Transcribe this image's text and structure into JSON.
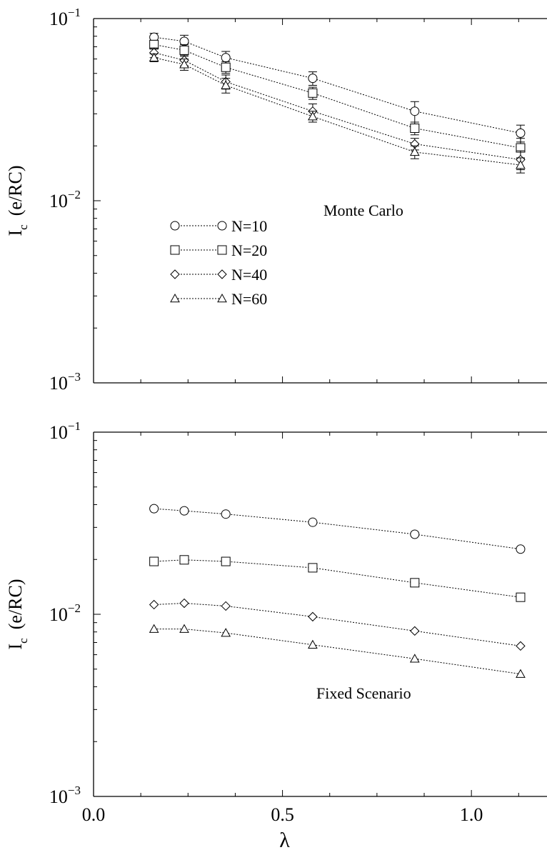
{
  "chart_data": [
    {
      "type": "line",
      "panel": "top",
      "annotation": "Monte Carlo",
      "ylabel_main": "I",
      "ylabel_sub": "c",
      "ylabel_units": "(e/RC)",
      "yscale": "log",
      "ylim": [
        0.001,
        0.1
      ],
      "xlim": [
        0.0,
        1.2
      ],
      "ytick_labels": [
        {
          "base": "10",
          "exp": "−3",
          "value": 0.001
        },
        {
          "base": "10",
          "exp": "−2",
          "value": 0.01
        },
        {
          "base": "10",
          "exp": "−1",
          "value": 0.1
        }
      ],
      "x": [
        0.16,
        0.24,
        0.35,
        0.58,
        0.85,
        1.13
      ],
      "legend_position": "middle-left",
      "series": [
        {
          "name": "N=10",
          "marker": "circle",
          "values": [
            0.079,
            0.075,
            0.061,
            0.047,
            0.031,
            0.0235
          ],
          "errors": [
            0.004,
            0.006,
            0.005,
            0.004,
            0.004,
            0.0025
          ]
        },
        {
          "name": "N=20",
          "marker": "square",
          "values": [
            0.072,
            0.067,
            0.054,
            0.039,
            0.025,
            0.0195
          ],
          "errors": [
            0.004,
            0.005,
            0.004,
            0.003,
            0.002,
            0.0025
          ]
        },
        {
          "name": "N=40",
          "marker": "diamond",
          "values": [
            0.065,
            0.059,
            0.045,
            0.031,
            0.0205,
            0.0168
          ],
          "errors": [
            0.004,
            0.004,
            0.004,
            0.003,
            0.0015,
            0.002
          ]
        },
        {
          "name": "N=60",
          "marker": "triangle",
          "values": [
            0.061,
            0.056,
            0.043,
            0.029,
            0.0185,
            0.0157
          ],
          "errors": [
            0.003,
            0.004,
            0.004,
            0.002,
            0.0015,
            0.0015
          ]
        }
      ]
    },
    {
      "type": "line",
      "panel": "bottom",
      "annotation": "Fixed Scenario",
      "ylabel_main": "I",
      "ylabel_sub": "c",
      "ylabel_units": "(e/RC)",
      "yscale": "log",
      "ylim": [
        0.001,
        0.1
      ],
      "xlim": [
        0.0,
        1.2
      ],
      "xlabel": "λ",
      "xtick_labels": [
        {
          "text": "0.0",
          "value": 0.0
        },
        {
          "text": "0.5",
          "value": 0.5
        },
        {
          "text": "1.0",
          "value": 1.0
        }
      ],
      "ytick_labels": [
        {
          "base": "10",
          "exp": "−3",
          "value": 0.001
        },
        {
          "base": "10",
          "exp": "−2",
          "value": 0.01
        },
        {
          "base": "10",
          "exp": "−1",
          "value": 0.1
        }
      ],
      "x": [
        0.16,
        0.24,
        0.35,
        0.58,
        0.85,
        1.13
      ],
      "series": [
        {
          "marker": "circle",
          "values": [
            0.038,
            0.037,
            0.0355,
            0.032,
            0.0275,
            0.0228
          ]
        },
        {
          "marker": "square",
          "values": [
            0.0195,
            0.0199,
            0.0195,
            0.018,
            0.0149,
            0.0124
          ]
        },
        {
          "marker": "diamond",
          "values": [
            0.0113,
            0.0115,
            0.0111,
            0.0097,
            0.0081,
            0.0067
          ]
        },
        {
          "marker": "triangle",
          "values": [
            0.0083,
            0.0083,
            0.0079,
            0.0068,
            0.0057,
            0.0047
          ]
        }
      ]
    }
  ]
}
